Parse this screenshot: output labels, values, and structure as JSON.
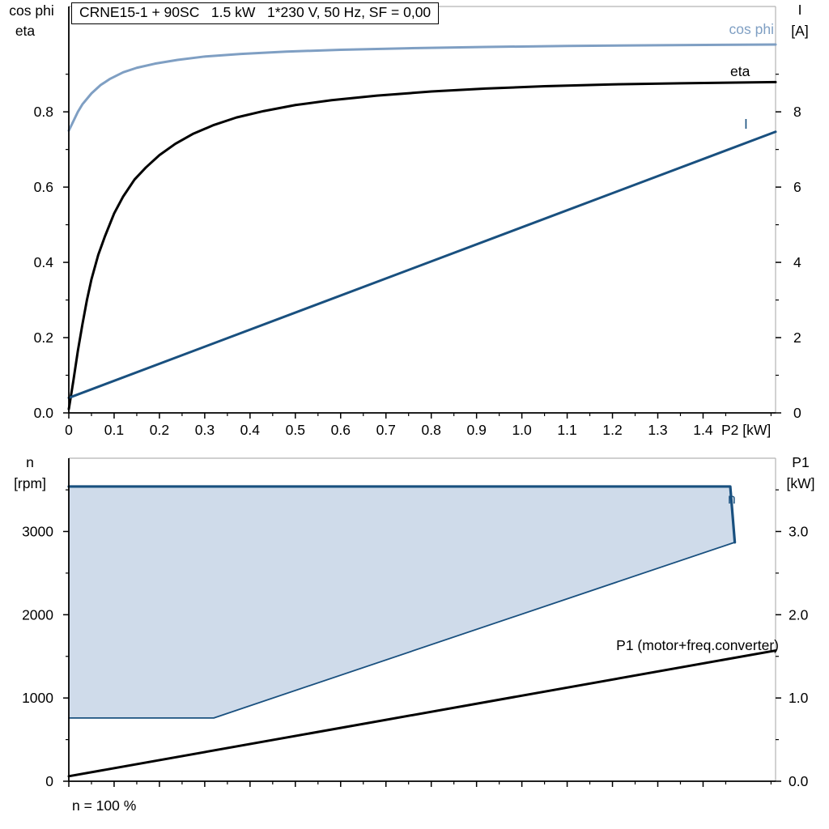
{
  "page": {
    "background": "#ffffff"
  },
  "title_box": {
    "text": "CRNE15-1 + 90SC   1.5 kW   1*230 V, 50 Hz, SF = 0,00"
  },
  "upper": {
    "left_axis_title_line1": "cos phi",
    "left_axis_title_line2": "eta",
    "right_axis_title_line1": "I",
    "right_axis_title_line2": "[A]",
    "x_axis_unit": "P2 [kW]",
    "curve_labels": {
      "cos_phi": "cos phi",
      "eta": "eta",
      "current": "I"
    }
  },
  "lower": {
    "left_axis_title_line1": "n",
    "left_axis_title_line2": "[rpm]",
    "right_axis_title_line1": "P1",
    "right_axis_title_line2": "[kW]",
    "region_label": "n",
    "p1_curve_label": "P1 (motor+freq.converter)",
    "footer": "n = 100 %"
  },
  "colors": {
    "cos_phi_curve": "#7f9fc3",
    "eta_curve": "#000000",
    "current_curve": "#19507f",
    "envelope_fill": "#cfdbea",
    "envelope_stroke": "#19507f",
    "p1_curve": "#000000",
    "frame_gray": "#b4b4b4",
    "axis_black": "#000000"
  },
  "chart_data": [
    {
      "type": "line",
      "title": "CRNE15-1 + 90SC 1.5 kW 1*230 V, 50 Hz, SF = 0,00",
      "xlabel": "P2 [kW]",
      "ylabel_left": "cos phi / eta",
      "ylabel_right": "I [A]",
      "xlim": [
        0,
        1.56
      ],
      "ylim_left": [
        0,
        1.08
      ],
      "ylim_right": [
        0,
        10.8
      ],
      "grid": false,
      "x_tick_values": [
        0,
        0.1,
        0.2,
        0.3,
        0.4,
        0.5,
        0.6,
        0.7,
        0.8,
        0.9,
        1.0,
        1.1,
        1.2,
        1.3,
        1.4
      ],
      "x_tick_labels": [
        "0",
        "0.1",
        "0.2",
        "0.3",
        "0.4",
        "0.5",
        "0.6",
        "0.7",
        "0.8",
        "0.9",
        "1.0",
        "1.1",
        "1.2",
        "1.3",
        "1.4"
      ],
      "x_minor_step": 0.05,
      "y_left_tick_values": [
        0,
        0.2,
        0.4,
        0.6,
        0.8
      ],
      "y_left_tick_labels": [
        "0.0",
        "0.2",
        "0.4",
        "0.6",
        "0.8"
      ],
      "y_left_minor_step": 0.1,
      "y_right_tick_values": [
        0,
        2,
        4,
        6,
        8
      ],
      "y_right_tick_labels": [
        "0",
        "2",
        "4",
        "6",
        "8"
      ],
      "y_right_minor_step": 1,
      "series": [
        {
          "name": "cos phi",
          "axis": "left",
          "color": "#7f9fc3",
          "width": 3,
          "points": [
            [
              0,
              0.75
            ],
            [
              0.01,
              0.775
            ],
            [
              0.02,
              0.8
            ],
            [
              0.03,
              0.82
            ],
            [
              0.05,
              0.849
            ],
            [
              0.07,
              0.871
            ],
            [
              0.09,
              0.887
            ],
            [
              0.12,
              0.905
            ],
            [
              0.15,
              0.917
            ],
            [
              0.19,
              0.928
            ],
            [
              0.24,
              0.938
            ],
            [
              0.3,
              0.947
            ],
            [
              0.38,
              0.954
            ],
            [
              0.48,
              0.96
            ],
            [
              0.6,
              0.965
            ],
            [
              0.75,
              0.969
            ],
            [
              0.92,
              0.9725
            ],
            [
              1.1,
              0.975
            ],
            [
              1.3,
              0.977
            ],
            [
              1.56,
              0.979
            ]
          ]
        },
        {
          "name": "eta",
          "axis": "left",
          "color": "#000000",
          "width": 3,
          "points": [
            [
              0,
              0.01
            ],
            [
              0.01,
              0.085
            ],
            [
              0.02,
              0.165
            ],
            [
              0.03,
              0.235
            ],
            [
              0.04,
              0.3
            ],
            [
              0.05,
              0.355
            ],
            [
              0.065,
              0.42
            ],
            [
              0.08,
              0.47
            ],
            [
              0.1,
              0.53
            ],
            [
              0.12,
              0.575
            ],
            [
              0.145,
              0.62
            ],
            [
              0.17,
              0.652
            ],
            [
              0.2,
              0.685
            ],
            [
              0.235,
              0.715
            ],
            [
              0.275,
              0.742
            ],
            [
              0.32,
              0.765
            ],
            [
              0.37,
              0.785
            ],
            [
              0.43,
              0.802
            ],
            [
              0.5,
              0.818
            ],
            [
              0.58,
              0.831
            ],
            [
              0.68,
              0.843
            ],
            [
              0.8,
              0.854
            ],
            [
              0.92,
              0.862
            ],
            [
              1.05,
              0.868
            ],
            [
              1.2,
              0.873
            ],
            [
              1.35,
              0.876
            ],
            [
              1.56,
              0.879
            ]
          ]
        },
        {
          "name": "I",
          "axis": "right",
          "color": "#19507f",
          "width": 3,
          "points": [
            [
              0,
              0.4
            ],
            [
              1.56,
              7.47
            ]
          ]
        }
      ]
    },
    {
      "type": "area",
      "title": "",
      "xlabel": "",
      "ylabel_left": "n [rpm]",
      "ylabel_right": "P1 [kW]",
      "xlim": [
        0,
        1.56
      ],
      "ylim_left": [
        0,
        3880
      ],
      "ylim_right": [
        0,
        3.88
      ],
      "grid": false,
      "x_tick_values": [
        0,
        0.1,
        0.2,
        0.3,
        0.4,
        0.5,
        0.6,
        0.7,
        0.8,
        0.9,
        1.0,
        1.1,
        1.2,
        1.3,
        1.4
      ],
      "x_tick_labels": [
        "",
        "",
        "",
        "",
        "",
        "",
        "",
        "",
        "",
        "",
        "",
        "",
        "",
        "",
        ""
      ],
      "x_minor_step": 0.05,
      "y_left_tick_values": [
        0,
        1000,
        2000,
        3000
      ],
      "y_left_tick_labels": [
        "0",
        "1000",
        "2000",
        "3000"
      ],
      "y_left_minor_step": 500,
      "y_right_tick_values": [
        0,
        1,
        2,
        3
      ],
      "y_right_tick_labels": [
        "0.0",
        "1.0",
        "2.0",
        "3.0"
      ],
      "y_right_minor_step": 0.5,
      "annotation": "n = 100 %",
      "envelope": {
        "name": "n",
        "axis": "left",
        "fill": "#cfdbea",
        "stroke": "#19507f",
        "points": [
          [
            0,
            3540
          ],
          [
            1.46,
            3540
          ],
          [
            1.47,
            2870
          ],
          [
            0.32,
            760
          ],
          [
            0,
            760
          ]
        ],
        "top_edge": [
          [
            0,
            3540
          ],
          [
            1.46,
            3540
          ],
          [
            1.47,
            2870
          ]
        ],
        "lower_edge": [
          [
            1.47,
            2870
          ],
          [
            0.32,
            760
          ],
          [
            0,
            760
          ]
        ]
      },
      "series": [
        {
          "name": "P1 (motor+freq.converter)",
          "axis": "right",
          "color": "#000000",
          "width": 3,
          "points": [
            [
              0,
              0.06
            ],
            [
              1.56,
              1.57
            ]
          ]
        }
      ]
    }
  ]
}
